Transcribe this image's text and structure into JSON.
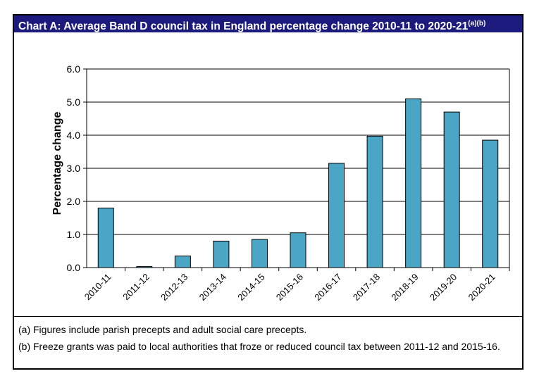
{
  "chart_data": {
    "type": "bar",
    "title": "Chart A: Average Band D council tax in England percentage change 2010-11 to 2020-21",
    "title_superscript": "(a)(b)",
    "xlabel": "",
    "ylabel": "Percentage change",
    "categories": [
      "2010-11",
      "2011-12",
      "2012-13",
      "2013-14",
      "2014-15",
      "2015-16",
      "2016-17",
      "2017-18",
      "2018-19",
      "2019-20",
      "2020-21"
    ],
    "values": [
      1.8,
      0.03,
      0.35,
      0.8,
      0.85,
      1.05,
      3.15,
      3.97,
      5.1,
      4.7,
      3.85
    ],
    "ylim": [
      0,
      6
    ],
    "yticks": [
      "0.0",
      "1.0",
      "2.0",
      "3.0",
      "4.0",
      "5.0",
      "6.0"
    ],
    "grid": true,
    "bar_color": "#4aa6c4"
  },
  "notes": [
    "(a) Figures include parish precepts and adult social care precepts.",
    "(b) Freeze grants was paid to local authorities that froze or reduced council tax between 2011-12 and 2015-16."
  ]
}
